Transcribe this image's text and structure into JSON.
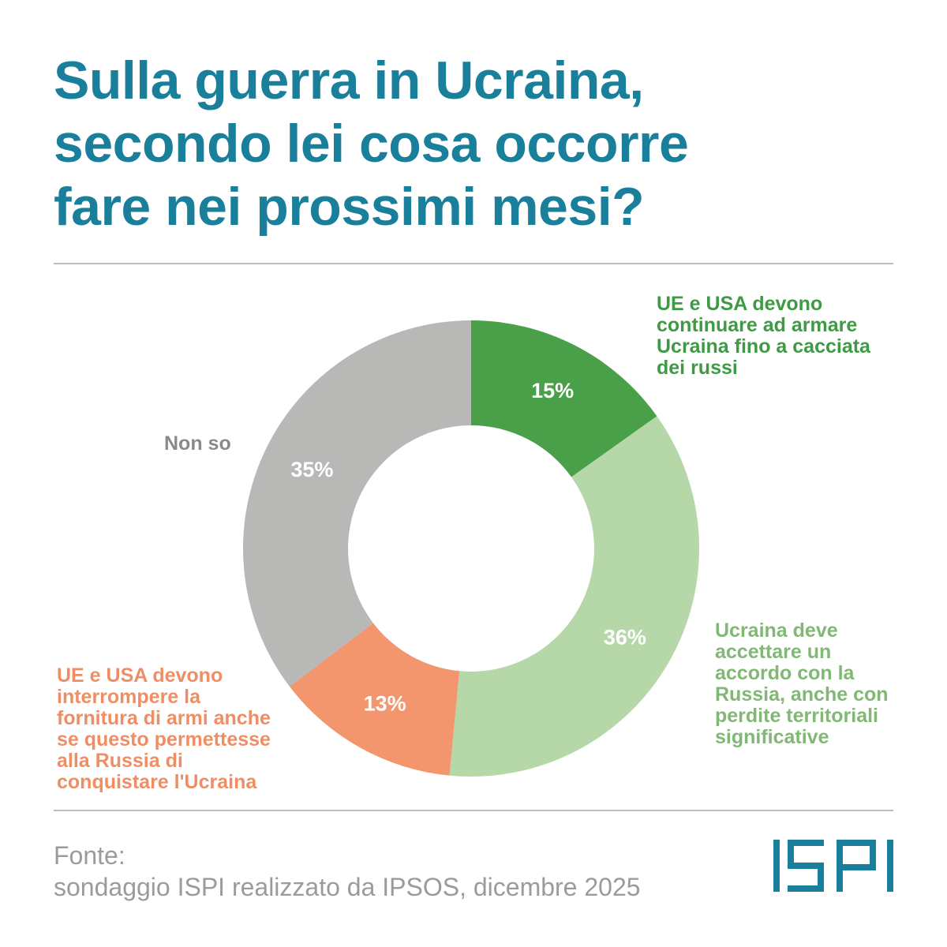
{
  "title_lines": [
    "Sulla guerra in Ucraina,",
    "secondo lei cosa occorre",
    "fare nei prossimi mesi?"
  ],
  "chart_data": {
    "type": "pie",
    "donut": true,
    "title": "Sulla guerra in Ucraina, secondo lei cosa occorre fare nei prossimi mesi?",
    "slices": [
      {
        "key": "green",
        "label_lines": [
          "UE e USA devono",
          "continuare ad armare",
          "Ucraina fino a cacciata",
          "dei russi"
        ],
        "value": 15,
        "value_label": "15%",
        "color": "#4aa049"
      },
      {
        "key": "lightgreen",
        "label_lines": [
          "Ucraina deve",
          "accettare un",
          "accordo con la",
          "Russia, anche con",
          "perdite territoriali",
          "significative"
        ],
        "value": 36,
        "value_label": "36%",
        "color": "#b6d7a8"
      },
      {
        "key": "orange",
        "label_lines": [
          "UE e USA devono",
          "interrompere la",
          "fornitura di armi anche",
          "se questo permettesse",
          "alla Russia di",
          "conquistare l'Ucraina"
        ],
        "value": 13,
        "value_label": "13%",
        "color": "#f3966e"
      },
      {
        "key": "grey",
        "label_lines": [
          "Non so"
        ],
        "value": 35,
        "value_label": "35%",
        "color": "#b8b8b7"
      }
    ],
    "unit": "%",
    "start": "12 o'clock",
    "direction": "clockwise"
  },
  "source_lines": [
    "Fonte:",
    "sondaggio ISPI realizzato da IPSOS, dicembre 2025"
  ],
  "logo": {
    "text": "ISPI",
    "color": "#1a7f9a"
  },
  "colors": {
    "title": "#1a7f9a",
    "rule": "#bdbdbd",
    "source": "#9b9b9b"
  }
}
